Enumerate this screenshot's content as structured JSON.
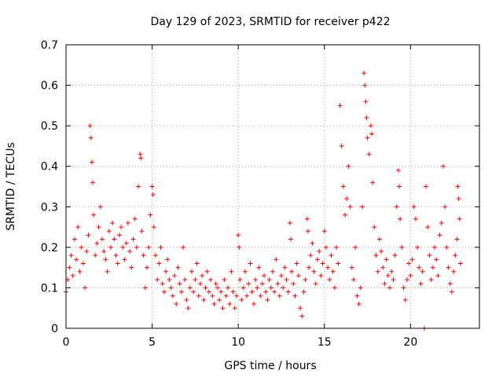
{
  "chart_data": {
    "type": "scatter",
    "title": "Day 129 of 2023, SRMTID for receiver p422",
    "xlabel": "GPS time / hours",
    "ylabel": "SRMTID / TECUs",
    "xlim": [
      0,
      24
    ],
    "ylim": [
      0,
      0.7
    ],
    "xticks": [
      0,
      5,
      10,
      15,
      20
    ],
    "yticks": [
      0,
      0.1,
      0.2,
      0.3,
      0.4,
      0.5,
      0.6,
      0.7
    ],
    "grid": true,
    "marker": "+",
    "color": "#ff0000",
    "series": [
      {
        "name": "SRMTID",
        "points": [
          [
            0.0,
            0.09
          ],
          [
            0.1,
            0.12
          ],
          [
            0.2,
            0.15
          ],
          [
            0.3,
            0.18
          ],
          [
            0.4,
            0.13
          ],
          [
            0.5,
            0.22
          ],
          [
            0.6,
            0.17
          ],
          [
            0.7,
            0.25
          ],
          [
            0.8,
            0.14
          ],
          [
            0.9,
            0.2
          ],
          [
            1.0,
            0.16
          ],
          [
            1.1,
            0.1
          ],
          [
            1.2,
            0.19
          ],
          [
            1.3,
            0.23
          ],
          [
            1.4,
            0.5
          ],
          [
            1.45,
            0.47
          ],
          [
            1.5,
            0.41
          ],
          [
            1.55,
            0.36
          ],
          [
            1.6,
            0.28
          ],
          [
            1.7,
            0.18
          ],
          [
            1.8,
            0.21
          ],
          [
            1.9,
            0.25
          ],
          [
            2.0,
            0.3
          ],
          [
            2.1,
            0.22
          ],
          [
            2.2,
            0.19
          ],
          [
            2.3,
            0.17
          ],
          [
            2.4,
            0.14
          ],
          [
            2.5,
            0.24
          ],
          [
            2.6,
            0.2
          ],
          [
            2.7,
            0.26
          ],
          [
            2.8,
            0.22
          ],
          [
            2.9,
            0.18
          ],
          [
            3.0,
            0.16
          ],
          [
            3.1,
            0.23
          ],
          [
            3.2,
            0.25
          ],
          [
            3.3,
            0.2
          ],
          [
            3.4,
            0.17
          ],
          [
            3.5,
            0.21
          ],
          [
            3.6,
            0.26
          ],
          [
            3.7,
            0.19
          ],
          [
            3.8,
            0.15
          ],
          [
            3.9,
            0.22
          ],
          [
            4.0,
            0.27
          ],
          [
            4.1,
            0.2
          ],
          [
            4.2,
            0.35
          ],
          [
            4.3,
            0.43
          ],
          [
            4.35,
            0.42
          ],
          [
            4.4,
            0.24
          ],
          [
            4.5,
            0.18
          ],
          [
            4.6,
            0.1
          ],
          [
            4.7,
            0.15
          ],
          [
            4.8,
            0.2
          ],
          [
            4.9,
            0.28
          ],
          [
            5.0,
            0.35
          ],
          [
            5.05,
            0.33
          ],
          [
            5.1,
            0.25
          ],
          [
            5.2,
            0.18
          ],
          [
            5.3,
            0.12
          ],
          [
            5.4,
            0.16
          ],
          [
            5.5,
            0.2
          ],
          [
            5.6,
            0.11
          ],
          [
            5.7,
            0.09
          ],
          [
            5.8,
            0.14
          ],
          [
            5.9,
            0.17
          ],
          [
            6.0,
            0.12
          ],
          [
            6.1,
            0.1
          ],
          [
            6.2,
            0.08
          ],
          [
            6.3,
            0.13
          ],
          [
            6.4,
            0.06
          ],
          [
            6.5,
            0.15
          ],
          [
            6.6,
            0.11
          ],
          [
            6.7,
            0.09
          ],
          [
            6.8,
            0.2
          ],
          [
            6.9,
            0.12
          ],
          [
            7.0,
            0.07
          ],
          [
            7.1,
            0.05
          ],
          [
            7.2,
            0.1
          ],
          [
            7.3,
            0.14
          ],
          [
            7.4,
            0.09
          ],
          [
            7.5,
            0.12
          ],
          [
            7.6,
            0.16
          ],
          [
            7.7,
            0.08
          ],
          [
            7.8,
            0.11
          ],
          [
            7.9,
            0.13
          ],
          [
            8.0,
            0.07
          ],
          [
            8.1,
            0.1
          ],
          [
            8.2,
            0.14
          ],
          [
            8.3,
            0.09
          ],
          [
            8.4,
            0.12
          ],
          [
            8.5,
            0.08
          ],
          [
            8.6,
            0.06
          ],
          [
            8.7,
            0.11
          ],
          [
            8.8,
            0.1
          ],
          [
            8.9,
            0.07
          ],
          [
            9.0,
            0.09
          ],
          [
            9.1,
            0.05
          ],
          [
            9.2,
            0.12
          ],
          [
            9.3,
            0.08
          ],
          [
            9.4,
            0.1
          ],
          [
            9.5,
            0.06
          ],
          [
            9.6,
            0.14
          ],
          [
            9.7,
            0.09
          ],
          [
            9.8,
            0.05
          ],
          [
            9.9,
            0.08
          ],
          [
            10.0,
            0.23
          ],
          [
            10.05,
            0.2
          ],
          [
            10.1,
            0.12
          ],
          [
            10.2,
            0.07
          ],
          [
            10.3,
            0.1
          ],
          [
            10.4,
            0.14
          ],
          [
            10.5,
            0.08
          ],
          [
            10.6,
            0.11
          ],
          [
            10.7,
            0.16
          ],
          [
            10.8,
            0.09
          ],
          [
            10.9,
            0.06
          ],
          [
            11.0,
            0.12
          ],
          [
            11.1,
            0.1
          ],
          [
            11.2,
            0.15
          ],
          [
            11.3,
            0.08
          ],
          [
            11.4,
            0.11
          ],
          [
            11.5,
            0.13
          ],
          [
            11.6,
            0.09
          ],
          [
            11.7,
            0.07
          ],
          [
            11.8,
            0.12
          ],
          [
            11.9,
            0.1
          ],
          [
            12.0,
            0.14
          ],
          [
            12.1,
            0.09
          ],
          [
            12.2,
            0.17
          ],
          [
            12.3,
            0.11
          ],
          [
            12.4,
            0.08
          ],
          [
            12.5,
            0.13
          ],
          [
            12.6,
            0.1
          ],
          [
            12.7,
            0.15
          ],
          [
            12.8,
            0.12
          ],
          [
            12.9,
            0.09
          ],
          [
            13.0,
            0.26
          ],
          [
            13.05,
            0.22
          ],
          [
            13.1,
            0.14
          ],
          [
            13.2,
            0.11
          ],
          [
            13.3,
            0.08
          ],
          [
            13.4,
            0.16
          ],
          [
            13.5,
            0.13
          ],
          [
            13.6,
            0.05
          ],
          [
            13.7,
            0.03
          ],
          [
            13.8,
            0.09
          ],
          [
            13.9,
            0.12
          ],
          [
            14.0,
            0.27
          ],
          [
            14.05,
            0.24
          ],
          [
            14.1,
            0.15
          ],
          [
            14.2,
            0.18
          ],
          [
            14.3,
            0.21
          ],
          [
            14.4,
            0.14
          ],
          [
            14.5,
            0.11
          ],
          [
            14.6,
            0.17
          ],
          [
            14.7,
            0.19
          ],
          [
            14.8,
            0.13
          ],
          [
            14.9,
            0.16
          ],
          [
            15.0,
            0.24
          ],
          [
            15.1,
            0.2
          ],
          [
            15.2,
            0.15
          ],
          [
            15.3,
            0.12
          ],
          [
            15.4,
            0.18
          ],
          [
            15.5,
            0.14
          ],
          [
            15.6,
            0.1
          ],
          [
            15.7,
            0.2
          ],
          [
            15.8,
            0.16
          ],
          [
            15.9,
            0.55
          ],
          [
            16.0,
            0.45
          ],
          [
            16.1,
            0.35
          ],
          [
            16.2,
            0.28
          ],
          [
            16.3,
            0.32
          ],
          [
            16.4,
            0.4
          ],
          [
            16.5,
            0.3
          ],
          [
            16.6,
            0.15
          ],
          [
            16.7,
            0.12
          ],
          [
            16.8,
            0.2
          ],
          [
            16.9,
            0.08
          ],
          [
            17.0,
            0.06
          ],
          [
            17.1,
            0.1
          ],
          [
            17.2,
            0.3
          ],
          [
            17.3,
            0.63
          ],
          [
            17.35,
            0.6
          ],
          [
            17.4,
            0.56
          ],
          [
            17.45,
            0.52
          ],
          [
            17.5,
            0.47
          ],
          [
            17.6,
            0.43
          ],
          [
            17.7,
            0.5
          ],
          [
            17.75,
            0.48
          ],
          [
            17.8,
            0.36
          ],
          [
            17.9,
            0.25
          ],
          [
            18.0,
            0.18
          ],
          [
            18.1,
            0.14
          ],
          [
            18.2,
            0.22
          ],
          [
            18.3,
            0.19
          ],
          [
            18.4,
            0.15
          ],
          [
            18.5,
            0.11
          ],
          [
            18.6,
            0.17
          ],
          [
            18.7,
            0.13
          ],
          [
            18.8,
            0.1
          ],
          [
            18.9,
            0.14
          ],
          [
            19.0,
            0.12
          ],
          [
            19.1,
            0.18
          ],
          [
            19.2,
            0.3
          ],
          [
            19.3,
            0.39
          ],
          [
            19.35,
            0.35
          ],
          [
            19.4,
            0.27
          ],
          [
            19.5,
            0.2
          ],
          [
            19.6,
            0.1
          ],
          [
            19.7,
            0.07
          ],
          [
            19.8,
            0.12
          ],
          [
            19.9,
            0.16
          ],
          [
            20.0,
            0.13
          ],
          [
            20.1,
            0.17
          ],
          [
            20.2,
            0.3
          ],
          [
            20.3,
            0.27
          ],
          [
            20.4,
            0.2
          ],
          [
            20.5,
            0.15
          ],
          [
            20.6,
            0.11
          ],
          [
            20.7,
            0.14
          ],
          [
            20.8,
            0.0
          ],
          [
            20.9,
            0.35
          ],
          [
            21.0,
            0.25
          ],
          [
            21.1,
            0.18
          ],
          [
            21.2,
            0.12
          ],
          [
            21.3,
            0.15
          ],
          [
            21.4,
            0.2
          ],
          [
            21.5,
            0.17
          ],
          [
            21.6,
            0.13
          ],
          [
            21.7,
            0.23
          ],
          [
            21.8,
            0.26
          ],
          [
            21.9,
            0.4
          ],
          [
            22.0,
            0.3
          ],
          [
            22.1,
            0.2
          ],
          [
            22.2,
            0.15
          ],
          [
            22.3,
            0.11
          ],
          [
            22.4,
            0.09
          ],
          [
            22.5,
            0.14
          ],
          [
            22.6,
            0.18
          ],
          [
            22.7,
            0.22
          ],
          [
            22.75,
            0.35
          ],
          [
            22.8,
            0.32
          ],
          [
            22.85,
            0.27
          ],
          [
            22.9,
            0.16
          ]
        ]
      }
    ]
  }
}
